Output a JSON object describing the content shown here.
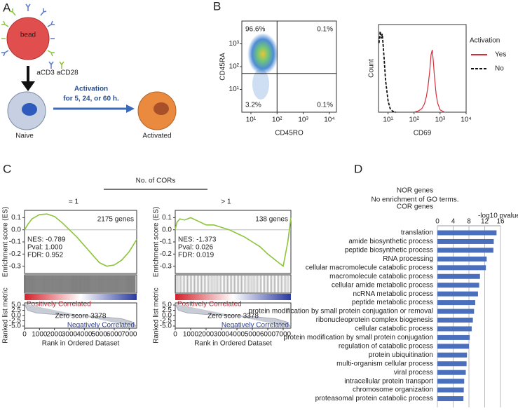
{
  "panel_labels": [
    "A",
    "B",
    "C",
    "D"
  ],
  "panel_a": {
    "bead": "bead",
    "antibodies": "aCD3 aCD28",
    "activation": "Activation",
    "duration": "for 5, 24, or 60 h.",
    "naive": "Naive",
    "activated": "Activated"
  },
  "panel_c_title": "No. of CORs",
  "panel_d_note": [
    "NOR genes",
    "No enrichment of GO terms."
  ],
  "chart_data": [
    {
      "type": "flow",
      "x_label": "CD45RO",
      "y_label": "CD45RA",
      "quadrant_labels": [
        "96.6%",
        "0.1%",
        "3.2%",
        "0.1%"
      ],
      "log_scale": true,
      "xlim": [
        4.5,
        18600
      ],
      "ylim": [
        1,
        10000
      ],
      "gates": {
        "x": 100,
        "y": 50
      },
      "xticks": [
        {
          "value": 10,
          "label": "10¹"
        },
        {
          "value": 100,
          "label": "10²"
        },
        {
          "value": 1000,
          "label": "10³"
        },
        {
          "value": 10000,
          "label": "10⁴"
        }
      ],
      "yticks": [
        {
          "value": 10,
          "label": "10¹"
        },
        {
          "value": 100,
          "label": "10²"
        },
        {
          "value": 1000,
          "label": "10³"
        }
      ]
    },
    {
      "type": "line",
      "x_label": "CD69",
      "y_label": "Count",
      "legend_title": "Activation",
      "log_scale": true,
      "xlim": [
        4.3,
        10000
      ],
      "ylim": [
        0,
        190
      ],
      "xticks": [
        {
          "value": 10,
          "label": "10¹"
        },
        {
          "value": 100,
          "label": "10²"
        },
        {
          "value": 1000,
          "label": "10³"
        },
        {
          "value": 10000,
          "label": "10⁴"
        }
      ],
      "series": [
        {
          "name": "Yes",
          "color": "#d62d3a",
          "dash": false,
          "x": [
            100,
            150,
            200,
            250,
            300,
            350,
            400,
            450,
            500,
            550,
            600,
            700,
            800,
            1000,
            1500
          ],
          "values": [
            0,
            3,
            8,
            18,
            35,
            60,
            90,
            125,
            135,
            110,
            80,
            40,
            20,
            5,
            0
          ]
        },
        {
          "name": "No",
          "color": "#111111",
          "dash": true,
          "x": [
            4.5,
            5,
            5.5,
            6,
            7,
            8,
            10,
            12,
            15,
            20
          ],
          "values": [
            150,
            175,
            160,
            170,
            120,
            70,
            25,
            8,
            2,
            0
          ]
        }
      ]
    },
    {
      "type": "gsea",
      "title": "= 1",
      "genes_label": "2175 genes",
      "stats": [
        "NES: -0.789",
        "Pval: 1.000",
        "FDR: 0.952"
      ],
      "es_label": "Enrichment score (ES)",
      "metric_label": "Ranked list metric",
      "x_label": "Rank in Ordered Dataset",
      "pos_label": "Positively Correlated",
      "neg_label": "Negatively Correlated",
      "zero_label": "Zero score 3378",
      "color": "#8cc43c",
      "xlim": [
        0,
        7500
      ],
      "xticks": [
        0,
        1000,
        2000,
        3000,
        4000,
        5000,
        6000,
        7000
      ],
      "ylim": [
        -0.36,
        0.16
      ],
      "yticks": [
        0.1,
        {
          "value": 0,
          "label": "0.0"
        },
        -0.1,
        -0.2,
        -0.3
      ],
      "metric_ylim": [
        -6,
        6
      ],
      "metric_yticks": [
        {
          "value": 5,
          "label": "5.0"
        },
        2.5,
        {
          "value": 0,
          "label": "0.0"
        },
        -2.5,
        {
          "value": -5,
          "label": "-5.0"
        }
      ],
      "x": [
        0,
        250,
        500,
        1000,
        1500,
        2000,
        2500,
        3000,
        3500,
        4000,
        4500,
        5000,
        5500,
        6000,
        6500,
        7000,
        7500
      ],
      "es": [
        0,
        0.05,
        0.09,
        0.125,
        0.13,
        0.11,
        0.06,
        0,
        -0.06,
        -0.13,
        -0.2,
        -0.27,
        -0.3,
        -0.29,
        -0.25,
        -0.18,
        -0.08
      ],
      "metric_x": [
        0,
        200,
        800,
        2000,
        3378,
        5000,
        6500,
        7200,
        7500
      ],
      "metric": [
        5.5,
        2.5,
        1.2,
        0.5,
        0,
        -0.5,
        -1.5,
        -3,
        -5.5
      ]
    },
    {
      "type": "gsea",
      "title": "> 1",
      "genes_label": "138 genes",
      "stats": [
        "NES: -1.373",
        "Pval: 0.026",
        "FDR: 0.019"
      ],
      "es_label": "Enrichment score (ES)",
      "metric_label": "Ranked list metric",
      "x_label": "Rank in Ordered Dataset",
      "pos_label": "Positively Correlated",
      "neg_label": "Negatively Correlated",
      "zero_label": "Zero score 3378",
      "color": "#8cc43c",
      "xlim": [
        0,
        7500
      ],
      "xticks": [
        0,
        1000,
        2000,
        3000,
        4000,
        5000,
        6000,
        7000
      ],
      "ylim": [
        -0.36,
        0.16
      ],
      "yticks": [
        0.1,
        {
          "value": 0,
          "label": "0.0"
        },
        -0.1,
        -0.2,
        -0.3
      ],
      "metric_ylim": [
        -6,
        6
      ],
      "metric_yticks": [
        {
          "value": 5,
          "label": "5.0"
        },
        2.5,
        {
          "value": 0,
          "label": "0.0"
        },
        -2.5,
        {
          "value": -5,
          "label": "-5.0"
        }
      ],
      "x": [
        0,
        100,
        300,
        600,
        1000,
        1500,
        2000,
        2500,
        3000,
        3500,
        4000,
        4500,
        5000,
        5500,
        6000,
        6500,
        7000,
        7300,
        7500
      ],
      "es": [
        0,
        0.06,
        0.09,
        0.08,
        0.1,
        0.07,
        0.04,
        0.04,
        0.02,
        0,
        -0.03,
        -0.06,
        -0.1,
        -0.14,
        -0.2,
        -0.25,
        -0.3,
        -0.1,
        0.1
      ],
      "metric_x": [
        0,
        200,
        800,
        2000,
        3378,
        5000,
        6500,
        7200,
        7500
      ],
      "metric": [
        5.5,
        2.5,
        1.2,
        0.5,
        0,
        -0.5,
        -1.5,
        -3,
        -5.5
      ]
    },
    {
      "type": "hbar",
      "title": "COR genes",
      "x_label": "-log10 pvalue",
      "color": "#4a6fbd",
      "grid": true,
      "xlim": [
        0,
        16
      ],
      "xticks": [
        0,
        4,
        8,
        12,
        16
      ],
      "categories": [
        "translation",
        "amide biosynthetic process",
        "peptide biosynthetic process",
        "RNA processing",
        "cellular macromolecule catabolic process",
        "macromolecule catabolic process",
        "cellular amide metabolic process",
        "ncRNA metabolic process",
        "peptide metabolic process",
        "protein modification by small protein conjugation or removal",
        "ribonucleoprotein complex biogenesis",
        "cellular catabolic process",
        "protein modification by small protein conjugation",
        "regulation of catabolic process",
        "protein ubiquitination",
        "multi-organism cellular process",
        "viral process",
        "intracellular protein transport",
        "chromosome organization",
        "proteasomal protein catabolic process"
      ],
      "values": [
        15,
        14.3,
        14.2,
        12.5,
        12.3,
        10.8,
        10.6,
        10.3,
        9.6,
        9.3,
        9.0,
        8.7,
        8.2,
        8.0,
        7.5,
        7.4,
        7.2,
        6.8,
        6.7,
        6.6
      ]
    }
  ]
}
